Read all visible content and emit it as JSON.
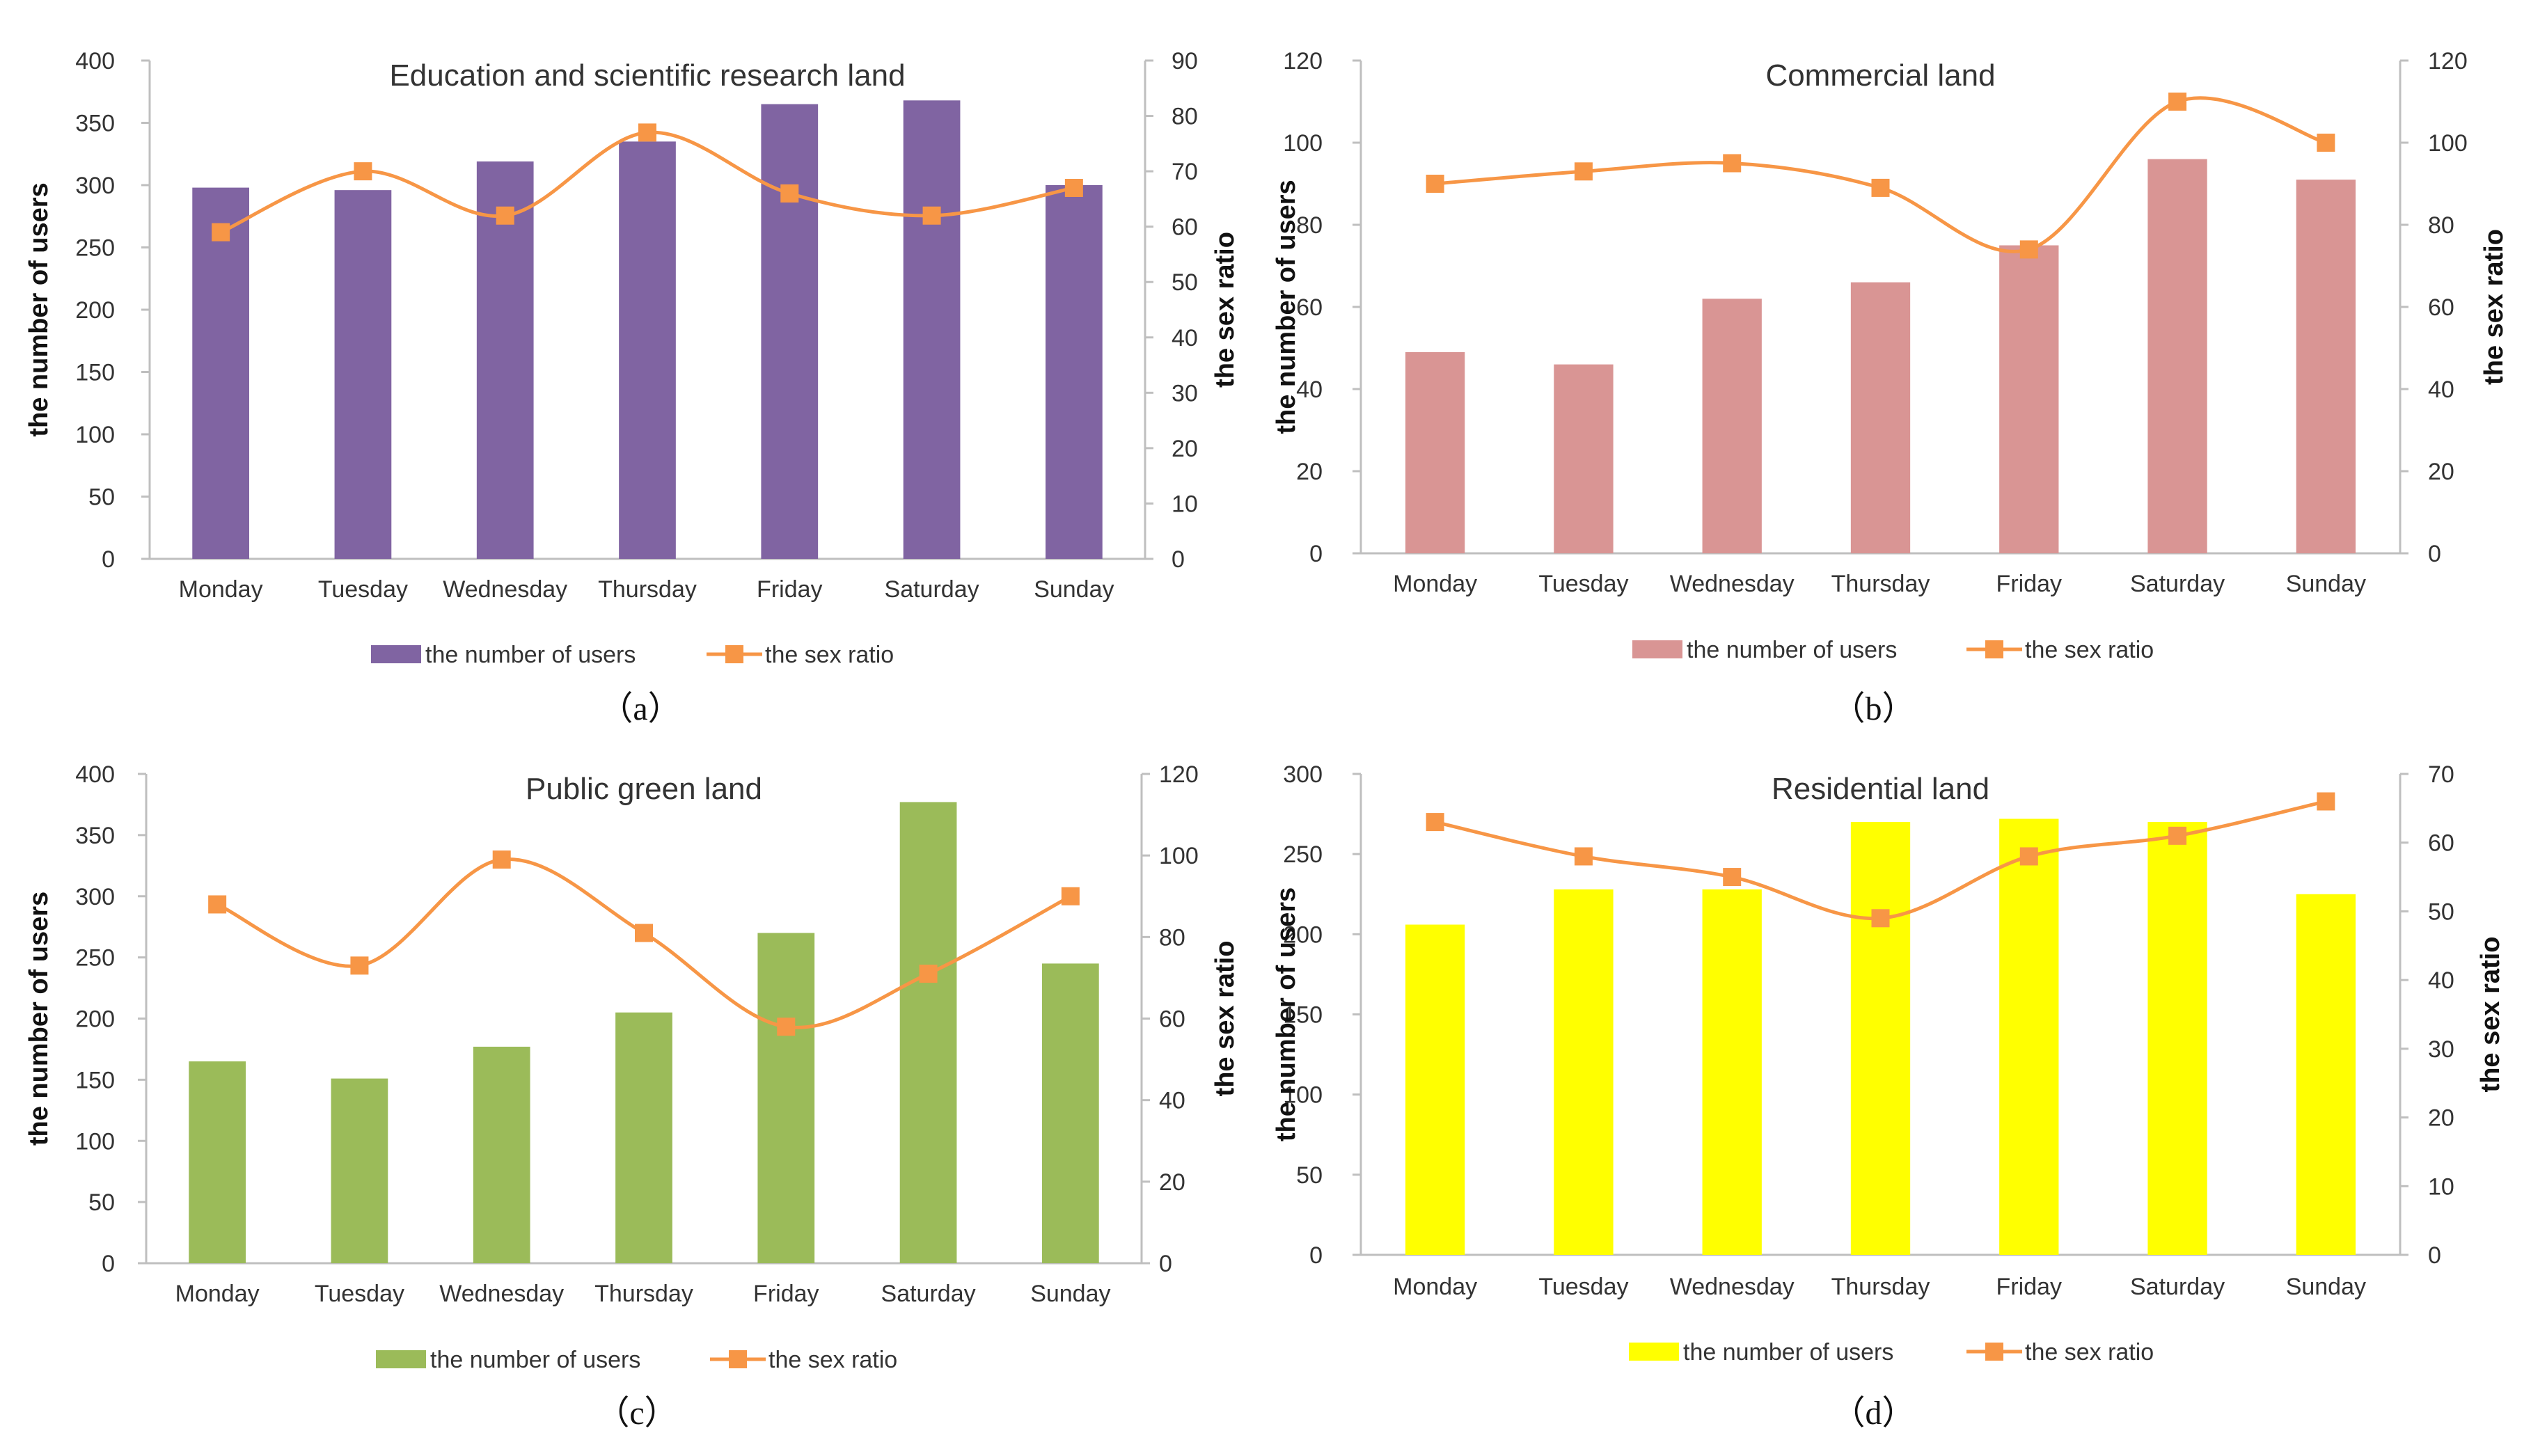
{
  "chart_data": [
    {
      "type": "bar",
      "title": "Education and scientific research land",
      "caption": "（a）",
      "categories": [
        "Monday",
        "Tuesday",
        "Wednesday",
        "Thursday",
        "Friday",
        "Saturday",
        "Sunday"
      ],
      "xlabel": "",
      "ylabel": "the number of users",
      "y2label": "the sex ratio",
      "ylim": [
        0,
        400
      ],
      "yticks": [
        0,
        50,
        100,
        150,
        200,
        250,
        300,
        350,
        400
      ],
      "y2lim": [
        0,
        90
      ],
      "y2ticks": [
        0,
        10,
        20,
        30,
        40,
        50,
        60,
        70,
        80,
        90
      ],
      "bar_color": "#8064a2",
      "line_color": "#f79646",
      "series": [
        {
          "name": "the number of users",
          "type": "bar",
          "axis": "left",
          "values": [
            298,
            296,
            319,
            335,
            365,
            368,
            300
          ]
        },
        {
          "name": "the sex ratio",
          "type": "line",
          "axis": "right",
          "values": [
            59,
            70,
            62,
            77,
            66,
            62,
            67
          ]
        }
      ],
      "legend": "bottom"
    },
    {
      "type": "bar",
      "title": "Commercial land",
      "caption": "（b）",
      "categories": [
        "Monday",
        "Tuesday",
        "Wednesday",
        "Thursday",
        "Friday",
        "Saturday",
        "Sunday"
      ],
      "xlabel": "",
      "ylabel": "the number of users",
      "y2label": "the sex ratio",
      "ylim": [
        0,
        120
      ],
      "yticks": [
        0,
        20,
        40,
        60,
        80,
        100,
        120
      ],
      "y2lim": [
        0,
        120
      ],
      "y2ticks": [
        0,
        20,
        40,
        60,
        80,
        100,
        120
      ],
      "bar_color": "#d99594",
      "line_color": "#f79646",
      "series": [
        {
          "name": "the number of users",
          "type": "bar",
          "axis": "left",
          "values": [
            49,
            46,
            62,
            66,
            75,
            96,
            91
          ]
        },
        {
          "name": "the sex ratio",
          "type": "line",
          "axis": "right",
          "values": [
            90,
            93,
            95,
            89,
            74,
            110,
            100
          ]
        }
      ],
      "legend": "bottom"
    },
    {
      "type": "bar",
      "title": "Public green land",
      "caption": "（c）",
      "categories": [
        "Monday",
        "Tuesday",
        "Wednesday",
        "Thursday",
        "Friday",
        "Saturday",
        "Sunday"
      ],
      "xlabel": "",
      "ylabel": "the number of users",
      "y2label": "the sex ratio",
      "ylim": [
        0,
        400
      ],
      "yticks": [
        0,
        50,
        100,
        150,
        200,
        250,
        300,
        350,
        400
      ],
      "y2lim": [
        0,
        120
      ],
      "y2ticks": [
        0,
        20,
        40,
        60,
        80,
        100,
        120
      ],
      "bar_color": "#9bbb59",
      "line_color": "#f79646",
      "series": [
        {
          "name": "the number of users",
          "type": "bar",
          "axis": "left",
          "values": [
            165,
            151,
            177,
            205,
            270,
            377,
            245
          ]
        },
        {
          "name": "the sex ratio",
          "type": "line",
          "axis": "right",
          "values": [
            88,
            73,
            99,
            81,
            58,
            71,
            90
          ]
        }
      ],
      "legend": "bottom"
    },
    {
      "type": "bar",
      "title": "Residential land",
      "caption": "（d）",
      "categories": [
        "Monday",
        "Tuesday",
        "Wednesday",
        "Thursday",
        "Friday",
        "Saturday",
        "Sunday"
      ],
      "xlabel": "",
      "ylabel": "the number of users",
      "y2label": "the sex ratio",
      "ylim": [
        0,
        300
      ],
      "yticks": [
        0,
        50,
        100,
        150,
        200,
        250,
        300
      ],
      "y2lim": [
        0,
        70
      ],
      "y2ticks": [
        0,
        10,
        20,
        30,
        40,
        50,
        60,
        70
      ],
      "bar_color": "#ffff00",
      "line_color": "#f79646",
      "series": [
        {
          "name": "the number of users",
          "type": "bar",
          "axis": "left",
          "values": [
            206,
            228,
            228,
            270,
            272,
            270,
            225
          ]
        },
        {
          "name": "the sex ratio",
          "type": "line",
          "axis": "right",
          "values": [
            63,
            58,
            55,
            49,
            58,
            61,
            66
          ]
        }
      ],
      "legend": "bottom"
    }
  ]
}
